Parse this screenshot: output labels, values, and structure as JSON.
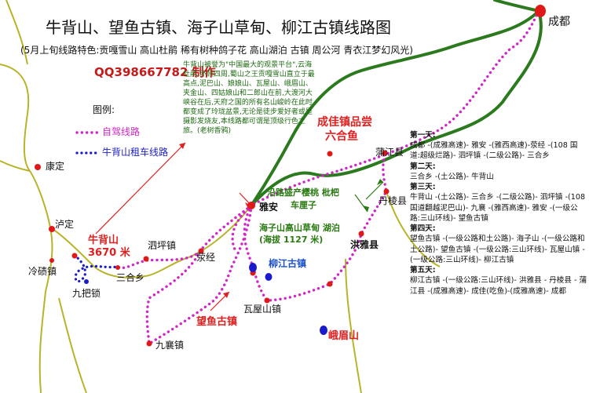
{
  "title": "牛背山、望鱼古镇、海子山草甸、柳江古镇线路图",
  "subtitle": "(5月上旬线路特色:贡嘎雪山 高山杜鹃 稀有树种鸽子花 高山湖泊 古镇 周公河 青衣江梦幻风光)",
  "qq": "QQ398667782 制作",
  "intro": "牛背山被誉为\"中国最大的观景平台\",云海杜鹃,环顾四周,蜀山之王贡嘎雪山直立于最高点,泥巴山、娘娘山、瓦屋山、峨眉山、夹金山、四姑娘山和二郎山在前,大渡河大峡谷在后,天府之国的所有名山峻岭在此时都变成了玲珑盆景,无论是徒步爱好者或是摄影发烧友,本线路都可谓是顶级行色之旅。(老树香鸦)",
  "legend": {
    "title": "图例:",
    "self_drive": "自驾线路",
    "rental": "牛背山租车线路"
  },
  "colors": {
    "self_drive": "#d026c8",
    "rental": "#1a1acc",
    "expressway": "#2c7a1e",
    "road_yellow": "#b8b42a",
    "town_dot": "#e01818"
  },
  "places": {
    "chengdu": "成都",
    "kangding": "康定",
    "luding": "泸定",
    "lengqi": "冷碛镇",
    "jiuba": "九把锁",
    "sanhe": "三合乡",
    "sipingzhen": "泗坪镇",
    "yingjing": "荥经",
    "jiuxiang": "九襄镇",
    "yaan": "雅安",
    "wawushan": "瓦屋山镇",
    "hongya": "洪雅县",
    "danleng": "丹棱县",
    "pujiang": "蒲江县",
    "emeishan": "峨眉山",
    "niubeishan": "牛背山",
    "niubeishan_alt": "3670 米",
    "wangyu": "望鱼古镇",
    "liujiang": "柳江古镇",
    "chengjia_1": "成佳镇品尝",
    "chengjia_2": "六合鱼",
    "haizishan_1": "海子山高山草甸 湖泊",
    "haizishan_2": "(海拔 1127 米)",
    "cherry_1": "沿路盛产樱桃 枇杷",
    "cherry_2": "车厘子"
  },
  "itinerary": [
    {
      "day": "第一天:",
      "text": "成都 -(成雅高速)- 雅安 -(雅西高速)-荥经 -(108 国道:超级烂路)- 泗坪镇 -(二级公路)- 三合乡"
    },
    {
      "day": "第二天:",
      "text": "三合乡 -(土公路)- 牛背山"
    },
    {
      "day": "第三天:",
      "text": "牛背山 -(土公路)- 三合乡 -(二级公路)- 泗坪镇 -(108 国道翻越泥巴山)- 九襄 -(雅西高速)- 雅安 -(一级公路:三山环线)- 望鱼古镇"
    },
    {
      "day": "第四天:",
      "text": "望鱼古镇 -(一级公路和土公路)- 海子山 -(一级公路和土公路)- 望鱼古镇 -(一级公路:三山环线)- 瓦屋山镇 -(一级公路:三山环线)- 柳江古镇"
    },
    {
      "day": "第五天:",
      "text": "柳江古镇 -(一级公路:三山环线)- 洪雅县 - 丹棱县 - 蒲江县 -(成雅高速)- 成佳(吃鱼)-(成雅高速)- 成都"
    }
  ]
}
